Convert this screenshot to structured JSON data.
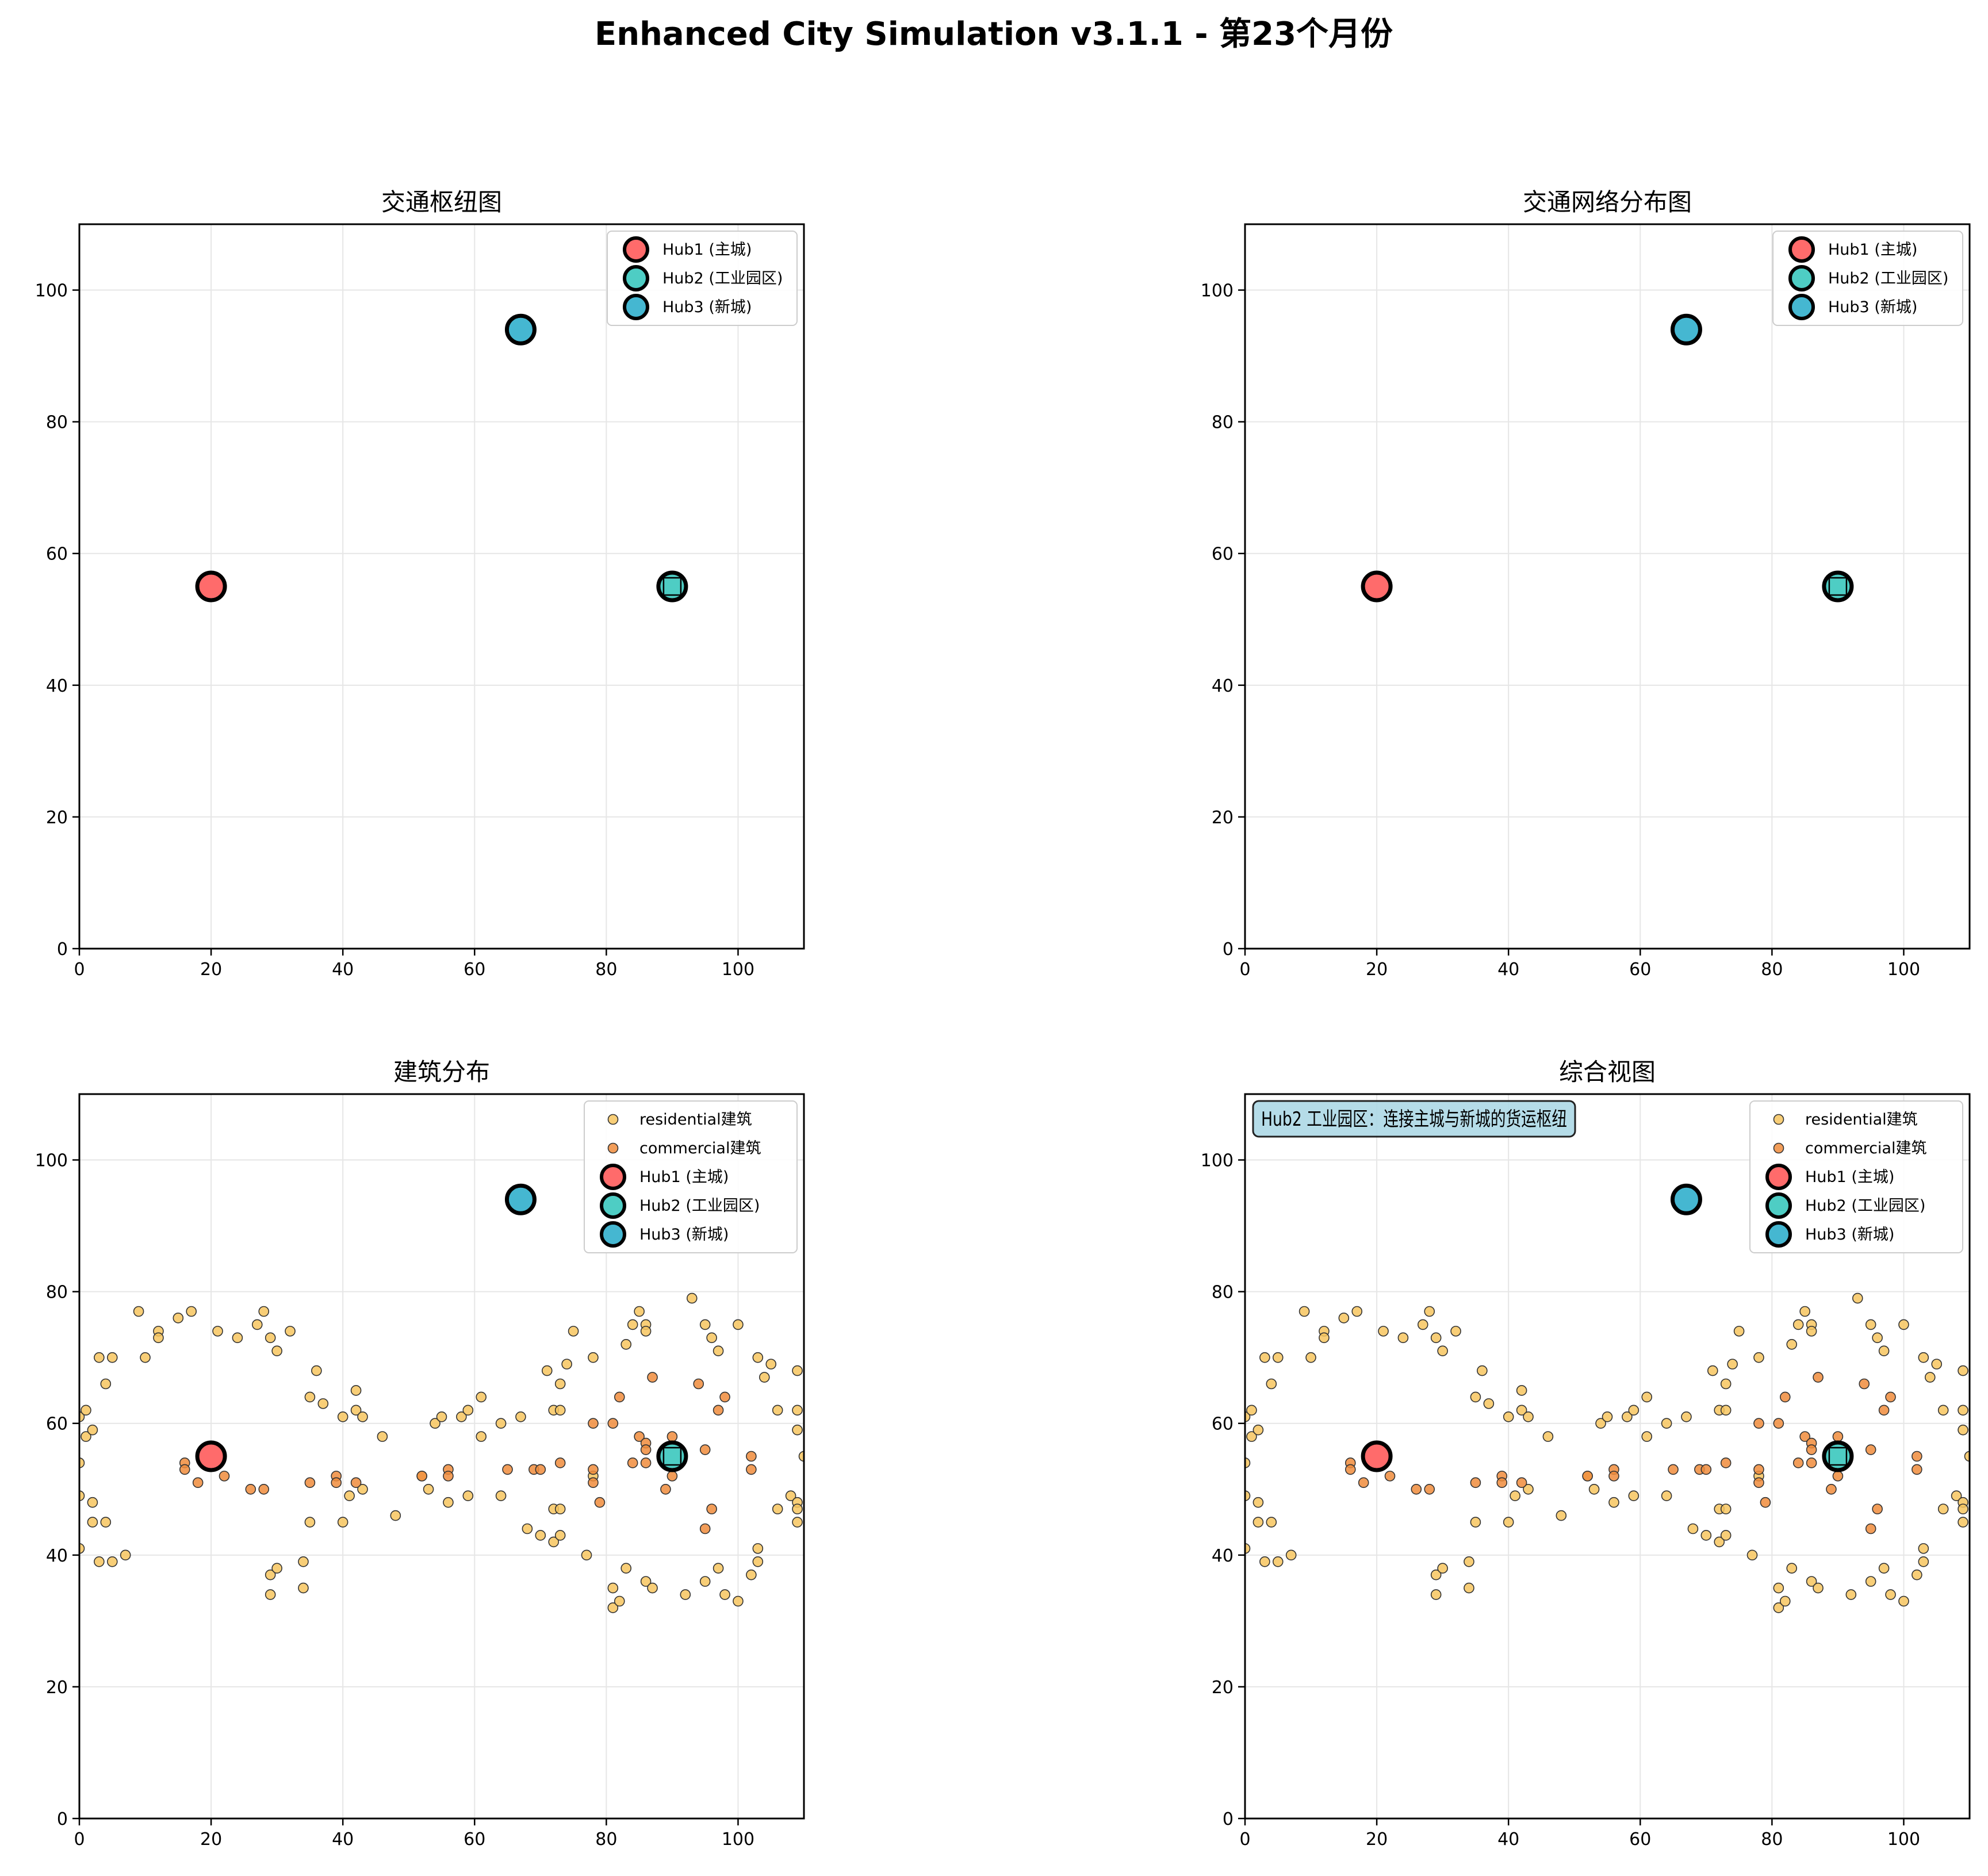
{
  "figure": {
    "title": "Enhanced City Simulation v3.1.1 - 第23个月份"
  },
  "colors": {
    "hub1": "#FF6B6B",
    "hub2": "#4ECDC4",
    "hub3": "#45B7D1",
    "residential": "#F7C65F",
    "commercial": "#F08C3C",
    "note_bg": "#ADD8E6",
    "grid": "#e6e6e6"
  },
  "chart_data": [
    {
      "type": "scatter",
      "title": "交通枢纽图",
      "xlim": [
        0,
        110
      ],
      "ylim": [
        0,
        110
      ],
      "xticks": [
        0,
        20,
        40,
        60,
        80,
        100
      ],
      "yticks": [
        0,
        20,
        40,
        60,
        80,
        100
      ],
      "grid": true,
      "legend_placement": "top-right",
      "hubs": [
        {
          "name": "Hub1 (主城)",
          "x": 20,
          "y": 55,
          "color_key": "hub1"
        },
        {
          "name": "Hub2 (工业园区)",
          "x": 90,
          "y": 55,
          "color_key": "hub2",
          "square_marker": true
        },
        {
          "name": "Hub3 (新城)",
          "x": 67,
          "y": 94,
          "color_key": "hub3"
        }
      ],
      "buildings": null
    },
    {
      "type": "scatter",
      "title": "交通网络分布图",
      "xlim": [
        0,
        110
      ],
      "ylim": [
        0,
        110
      ],
      "xticks": [
        0,
        20,
        40,
        60,
        80,
        100
      ],
      "yticks": [
        0,
        20,
        40,
        60,
        80,
        100
      ],
      "grid": true,
      "legend_placement": "top-right",
      "hubs": [
        {
          "name": "Hub1 (主城)",
          "x": 20,
          "y": 55,
          "color_key": "hub1"
        },
        {
          "name": "Hub2 (工业园区)",
          "x": 90,
          "y": 55,
          "color_key": "hub2",
          "square_marker": true
        },
        {
          "name": "Hub3 (新城)",
          "x": 67,
          "y": 94,
          "color_key": "hub3"
        }
      ],
      "buildings": null
    },
    {
      "type": "scatter",
      "title": "建筑分布",
      "xlim": [
        0,
        110
      ],
      "ylim": [
        0,
        110
      ],
      "xticks": [
        0,
        20,
        40,
        60,
        80,
        100
      ],
      "yticks": [
        0,
        20,
        40,
        60,
        80,
        100
      ],
      "grid": true,
      "legend_placement": "top-right",
      "hubs": [
        {
          "name": "Hub1 (主城)",
          "x": 20,
          "y": 55,
          "color_key": "hub1"
        },
        {
          "name": "Hub2 (工业园区)",
          "x": 90,
          "y": 55,
          "color_key": "hub2",
          "square_marker": true
        },
        {
          "name": "Hub3 (新城)",
          "x": 67,
          "y": 94,
          "color_key": "hub3"
        }
      ],
      "buildings": "shared"
    },
    {
      "type": "scatter",
      "title": "综合视图",
      "xlim": [
        0,
        110
      ],
      "ylim": [
        0,
        110
      ],
      "xticks": [
        0,
        20,
        40,
        60,
        80,
        100
      ],
      "yticks": [
        0,
        20,
        40,
        60,
        80,
        100
      ],
      "grid": true,
      "legend_placement": "top-right",
      "annotation": "Hub2 工业园区：连接主城与新城的货运枢纽",
      "hubs": [
        {
          "name": "Hub1 (主城)",
          "x": 20,
          "y": 55,
          "color_key": "hub1"
        },
        {
          "name": "Hub2 (工业园区)",
          "x": 90,
          "y": 55,
          "color_key": "hub2",
          "square_marker": true
        },
        {
          "name": "Hub3 (新城)",
          "x": 67,
          "y": 94,
          "color_key": "hub3"
        }
      ],
      "buildings": "shared"
    }
  ],
  "buildings": {
    "residential": {
      "name": "residential建筑",
      "points": [
        [
          0,
          54
        ],
        [
          0,
          49
        ],
        [
          0,
          41
        ],
        [
          0,
          61
        ],
        [
          1,
          62
        ],
        [
          1,
          58
        ],
        [
          2,
          59
        ],
        [
          2,
          48
        ],
        [
          2,
          45
        ],
        [
          3,
          70
        ],
        [
          3,
          39
        ],
        [
          4,
          45
        ],
        [
          4,
          66
        ],
        [
          5,
          70
        ],
        [
          5,
          39
        ],
        [
          7,
          40
        ],
        [
          9,
          77
        ],
        [
          10,
          70
        ],
        [
          12,
          74
        ],
        [
          12,
          73
        ],
        [
          15,
          76
        ],
        [
          17,
          77
        ],
        [
          21,
          74
        ],
        [
          24,
          73
        ],
        [
          27,
          75
        ],
        [
          28,
          77
        ],
        [
          29,
          73
        ],
        [
          30,
          71
        ],
        [
          32,
          74
        ],
        [
          29,
          37
        ],
        [
          29,
          34
        ],
        [
          30,
          38
        ],
        [
          34,
          39
        ],
        [
          34,
          35
        ],
        [
          35,
          64
        ],
        [
          35,
          45
        ],
        [
          36,
          68
        ],
        [
          37,
          63
        ],
        [
          40,
          61
        ],
        [
          40,
          45
        ],
        [
          41,
          49
        ],
        [
          42,
          65
        ],
        [
          42,
          62
        ],
        [
          43,
          61
        ],
        [
          43,
          50
        ],
        [
          46,
          58
        ],
        [
          48,
          46
        ],
        [
          52,
          52
        ],
        [
          53,
          50
        ],
        [
          54,
          60
        ],
        [
          55,
          61
        ],
        [
          56,
          48
        ],
        [
          58,
          61
        ],
        [
          59,
          62
        ],
        [
          59,
          49
        ],
        [
          61,
          64
        ],
        [
          61,
          58
        ],
        [
          64,
          60
        ],
        [
          64,
          49
        ],
        [
          67,
          61
        ],
        [
          68,
          44
        ],
        [
          70,
          43
        ],
        [
          71,
          68
        ],
        [
          72,
          62
        ],
        [
          72,
          47
        ],
        [
          72,
          42
        ],
        [
          73,
          66
        ],
        [
          73,
          62
        ],
        [
          73,
          47
        ],
        [
          73,
          43
        ],
        [
          74,
          69
        ],
        [
          75,
          74
        ],
        [
          77,
          40
        ],
        [
          78,
          70
        ],
        [
          78,
          52
        ],
        [
          81,
          35
        ],
        [
          81,
          32
        ],
        [
          82,
          33
        ],
        [
          83,
          72
        ],
        [
          83,
          38
        ],
        [
          84,
          75
        ],
        [
          85,
          77
        ],
        [
          86,
          75
        ],
        [
          86,
          74
        ],
        [
          86,
          36
        ],
        [
          87,
          35
        ],
        [
          92,
          34
        ],
        [
          93,
          79
        ],
        [
          95,
          75
        ],
        [
          95,
          36
        ],
        [
          96,
          73
        ],
        [
          97,
          71
        ],
        [
          97,
          38
        ],
        [
          98,
          34
        ],
        [
          100,
          75
        ],
        [
          100,
          33
        ],
        [
          102,
          37
        ],
        [
          103,
          70
        ],
        [
          103,
          41
        ],
        [
          103,
          39
        ],
        [
          104,
          67
        ],
        [
          105,
          69
        ],
        [
          106,
          62
        ],
        [
          106,
          47
        ],
        [
          108,
          49
        ],
        [
          109,
          68
        ],
        [
          109,
          62
        ],
        [
          109,
          59
        ],
        [
          109,
          48
        ],
        [
          109,
          47
        ],
        [
          109,
          45
        ],
        [
          110,
          55
        ]
      ]
    },
    "commercial": {
      "name": "commercial建筑",
      "points": [
        [
          16,
          54
        ],
        [
          16,
          53
        ],
        [
          18,
          51
        ],
        [
          22,
          52
        ],
        [
          26,
          50
        ],
        [
          28,
          50
        ],
        [
          35,
          51
        ],
        [
          39,
          52
        ],
        [
          39,
          51
        ],
        [
          42,
          51
        ],
        [
          52,
          52
        ],
        [
          56,
          53
        ],
        [
          56,
          52
        ],
        [
          65,
          53
        ],
        [
          69,
          53
        ],
        [
          70,
          53
        ],
        [
          73,
          54
        ],
        [
          78,
          60
        ],
        [
          78,
          53
        ],
        [
          78,
          51
        ],
        [
          79,
          48
        ],
        [
          81,
          60
        ],
        [
          82,
          64
        ],
        [
          84,
          54
        ],
        [
          85,
          58
        ],
        [
          86,
          57
        ],
        [
          86,
          56
        ],
        [
          86,
          54
        ],
        [
          87,
          67
        ],
        [
          89,
          50
        ],
        [
          90,
          58
        ],
        [
          90,
          52
        ],
        [
          94,
          66
        ],
        [
          95,
          56
        ],
        [
          95,
          44
        ],
        [
          96,
          47
        ],
        [
          97,
          62
        ],
        [
          98,
          64
        ],
        [
          102,
          55
        ],
        [
          102,
          53
        ]
      ]
    }
  }
}
